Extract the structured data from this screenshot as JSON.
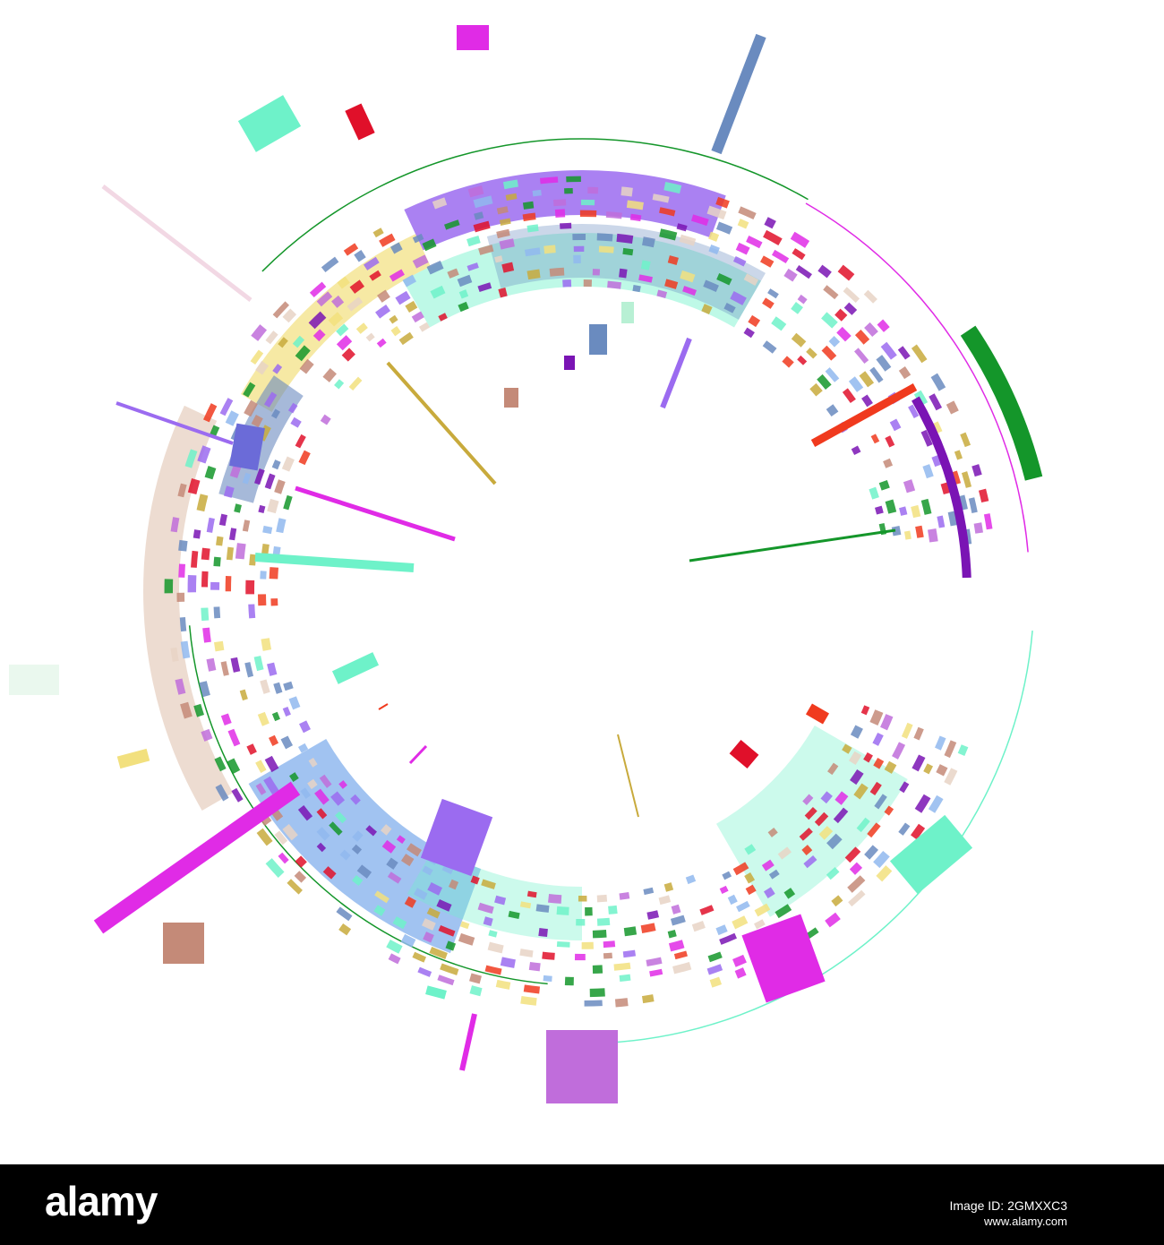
{
  "artwork": {
    "palette": [
      "#9b6bf0",
      "#6a8bbf",
      "#e02be6",
      "#6ef2c9",
      "#f2e07e",
      "#ffffff",
      "#14962a",
      "#f03a1e",
      "#e0102a",
      "#7a14b4",
      "#c48a78",
      "#c8aa3c",
      "#e8d3c5",
      "#90b8ee",
      "#c06ddb"
    ],
    "background": "#ffffff"
  },
  "footer": {
    "background": "#000000",
    "logo_text": "alamy",
    "image_id_label": "Image ID: ",
    "image_id_value": "2GMXXC3",
    "url": "www.alamy.com"
  }
}
